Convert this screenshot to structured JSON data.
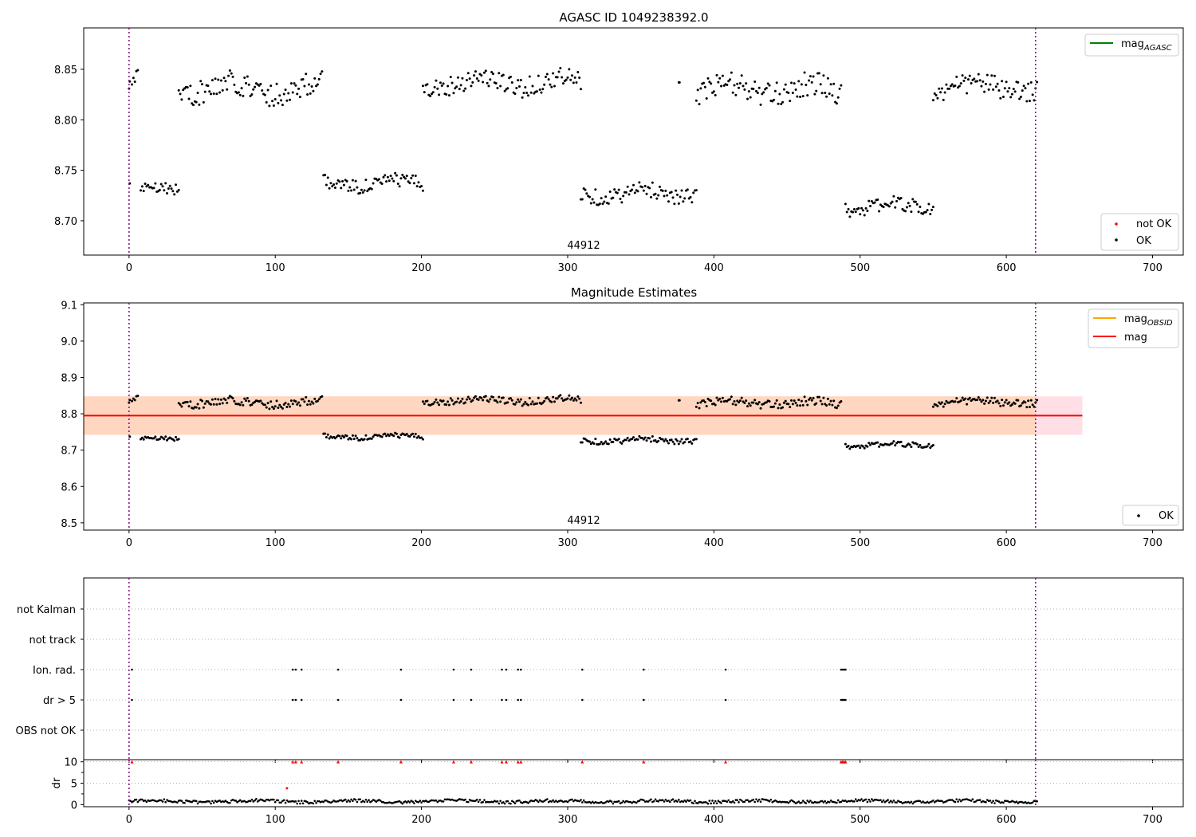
{
  "figure": {
    "title_top": "AGASC ID 1049238392.0",
    "title_mid": "Magnitude Estimates"
  },
  "colors": {
    "ok": "#000000",
    "not_ok": "#ff0000",
    "mag_agasc": "#008000",
    "mag_obsid": "#ffa500",
    "mag_line": "#ff0000",
    "band_fill": "#ffc0cb",
    "band_fill_obsid": "#ffd3b0",
    "obs_boundary": "#800080"
  },
  "chart_data": [
    {
      "type": "scatter",
      "title": "AGASC ID 1049238392.0",
      "annotation": "44912",
      "xlim": [
        -31,
        721
      ],
      "ylim": [
        8.666,
        8.891
      ],
      "xticks": [
        0,
        100,
        200,
        300,
        400,
        500,
        600,
        700
      ],
      "yticks": [
        8.7,
        8.75,
        8.8,
        8.85
      ],
      "ytick_labels": [
        "8.70",
        "8.75",
        "8.80",
        "8.85"
      ],
      "vlines": [
        0,
        620
      ],
      "legend_upper": {
        "position": "upper right",
        "entries": [
          "mag_AGASC"
        ]
      },
      "legend_lower": {
        "position": "lower right",
        "entries": [
          "not OK",
          "OK"
        ]
      },
      "series": [
        {
          "name": "OK",
          "marker": "point",
          "segments": [
            {
              "x_start": 0,
              "x_end": 1,
              "mean": 8.835,
              "spread": 0.006
            },
            {
              "x_start": 2,
              "x_end": 6,
              "mean": 8.838,
              "spread": 0.01
            },
            {
              "x_start": 0.5,
              "x_end": 0.5,
              "mean": 8.737,
              "spread": 0
            },
            {
              "x_start": 8,
              "x_end": 34,
              "mean": 8.732,
              "spread": 0.006
            },
            {
              "x_start": 34,
              "x_end": 132,
              "mean": 8.831,
              "spread": 0.012
            },
            {
              "x_start": 133,
              "x_end": 201,
              "mean": 8.737,
              "spread": 0.007
            },
            {
              "x_start": 201,
              "x_end": 309,
              "mean": 8.837,
              "spread": 0.01
            },
            {
              "x_start": 309,
              "x_end": 388,
              "mean": 8.727,
              "spread": 0.008
            },
            {
              "x_start": 376,
              "x_end": 377,
              "mean": 8.837,
              "spread": 0
            },
            {
              "x_start": 388,
              "x_end": 487,
              "mean": 8.83,
              "spread": 0.012
            },
            {
              "x_start": 490,
              "x_end": 550,
              "mean": 8.714,
              "spread": 0.007
            },
            {
              "x_start": 550,
              "x_end": 621,
              "mean": 8.832,
              "spread": 0.011
            }
          ]
        },
        {
          "name": "not OK",
          "values": []
        }
      ]
    },
    {
      "type": "scatter",
      "title": "Magnitude Estimates",
      "annotation": "44912",
      "xlim": [
        -31,
        721
      ],
      "ylim": [
        8.48,
        9.105
      ],
      "xticks": [
        0,
        100,
        200,
        300,
        400,
        500,
        600,
        700
      ],
      "yticks": [
        8.5,
        8.6,
        8.7,
        8.8,
        8.9,
        9.0,
        9.1
      ],
      "ytick_labels": [
        "8.5",
        "8.6",
        "8.7",
        "8.8",
        "8.9",
        "9.0",
        "9.1"
      ],
      "vlines": [
        0,
        620
      ],
      "mag": 8.795,
      "band": {
        "x_range": [
          -31,
          652
        ],
        "y_range": [
          8.742,
          8.848
        ]
      },
      "band_obsid": {
        "x_range": [
          -31,
          620
        ],
        "y_range": [
          8.742,
          8.848
        ]
      },
      "legend_upper": {
        "position": "upper right",
        "entries": [
          "mag_OBSID",
          "mag"
        ]
      },
      "legend_lower": {
        "position": "lower right",
        "entries": [
          "OK"
        ]
      },
      "series": [
        {
          "name": "OK",
          "marker": "point",
          "same_as_panel": 0
        }
      ]
    },
    {
      "type": "scatter",
      "title": "",
      "xlim": [
        -31,
        721
      ],
      "xticks": [
        0,
        100,
        200,
        300,
        400,
        500,
        600,
        700
      ],
      "vlines": [
        0,
        620
      ],
      "categories": [
        "not Kalman",
        "not track",
        "Ion. rad.",
        "dr > 5",
        "OBS not OK"
      ],
      "flag_events": {
        "Ion. rad.": [
          2,
          112,
          114,
          118,
          143,
          186,
          222,
          234,
          255,
          258,
          266,
          268,
          310,
          352,
          408,
          487,
          488,
          489,
          490
        ],
        "dr > 5": [
          2,
          112,
          114,
          118,
          143,
          186,
          222,
          234,
          255,
          258,
          266,
          268,
          310,
          352,
          408,
          487,
          488,
          489,
          490
        ],
        "not Kalman": [],
        "not track": [],
        "OBS not OK": []
      }
    },
    {
      "type": "scatter",
      "title": "",
      "ylabel": "dr",
      "xlim": [
        -31,
        721
      ],
      "ylim": [
        -0.5,
        10.5
      ],
      "xticks": [
        0,
        100,
        200,
        300,
        400,
        500,
        600,
        700
      ],
      "yticks": [
        0,
        5,
        10
      ],
      "ytick_labels": [
        "0",
        "5",
        "10"
      ],
      "vlines": [
        0,
        620
      ],
      "clipped_at": 10,
      "clipped_x": [
        2,
        112,
        114,
        118,
        143,
        186,
        222,
        234,
        255,
        258,
        266,
        268,
        310,
        352,
        408,
        487,
        488,
        489,
        490
      ],
      "outlier": {
        "x": 108,
        "y": 3.8
      },
      "baseline": {
        "x_start": 0,
        "x_end": 621,
        "mean": 0.75,
        "spread": 0.35
      }
    }
  ]
}
